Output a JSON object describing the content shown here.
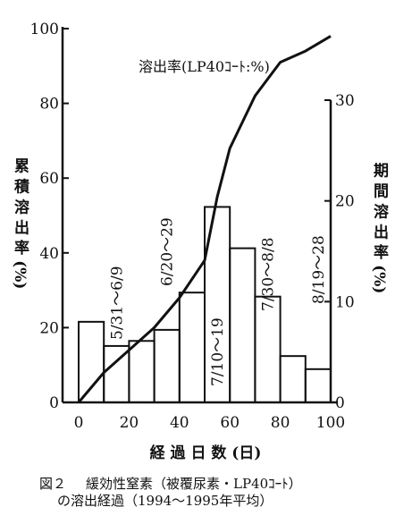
{
  "chart_data": {
    "type": "line+bar",
    "title": "溶出率(LP40ｺｰﾄ:%)",
    "xlabel": "経 過 日 数 (日)",
    "ylabel_left": "累 積 溶 出 率 (%)",
    "ylabel_right": "期 間 溶 出 率 (%)",
    "xlim": [
      0,
      100
    ],
    "ylim_left": [
      0,
      100
    ],
    "ylim_right": [
      0,
      37.5
    ],
    "x_ticks": [
      "0",
      "20",
      "40",
      "60",
      "80",
      "100"
    ],
    "y_left_ticks": [
      "0",
      "20",
      "40",
      "60",
      "80",
      "100"
    ],
    "y_right_ticks": [
      "0",
      "10",
      "20",
      "30"
    ],
    "grid": false,
    "line_series": {
      "name": "累積溶出率",
      "x": [
        0,
        10,
        20,
        30,
        40,
        50,
        55,
        60,
        70,
        80,
        90,
        100
      ],
      "y": [
        0,
        8,
        14,
        20,
        28,
        38,
        55,
        68,
        82,
        91,
        94,
        98
      ]
    },
    "bar_series": {
      "name": "期間溶出率",
      "bins": [
        {
          "x0": 0,
          "x1": 10,
          "value": 8.0
        },
        {
          "x0": 10,
          "x1": 20,
          "value": 5.6
        },
        {
          "x0": 20,
          "x1": 30,
          "value": 6.1
        },
        {
          "x0": 30,
          "x1": 40,
          "value": 7.2
        },
        {
          "x0": 40,
          "x1": 50,
          "value": 10.9
        },
        {
          "x0": 50,
          "x1": 60,
          "value": 19.4
        },
        {
          "x0": 60,
          "x1": 70,
          "value": 15.3
        },
        {
          "x0": 70,
          "x1": 80,
          "value": 10.5
        },
        {
          "x0": 80,
          "x1": 90,
          "value": 4.6
        },
        {
          "x0": 90,
          "x1": 100,
          "value": 3.3
        }
      ]
    },
    "period_labels": [
      {
        "text": "5/31～6/9",
        "x": 15
      },
      {
        "text": "6/20～29",
        "x": 35
      },
      {
        "text": "7/10～19",
        "x": 55
      },
      {
        "text": "7/30～8/8",
        "x": 75
      },
      {
        "text": "8/19～28",
        "x": 95
      }
    ]
  },
  "caption": {
    "figure_no": "図２",
    "line1": "緩効性窒素（被覆尿素・LP40ｺｰﾄ）",
    "line2": "の溶出経過（1994～1995年平均）"
  }
}
